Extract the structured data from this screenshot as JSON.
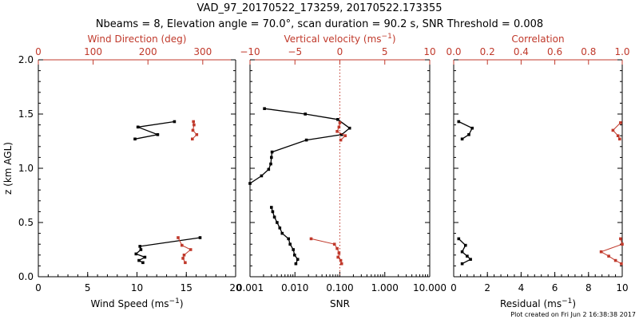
{
  "title_line1": "VAD_97_20170522_173259, 20170522.173355",
  "title_line2": "Nbeams = 8, Elevation angle = 70.0°, scan duration = 90.2 s, SNR Threshold = 0.008",
  "footer": "Plot created on Fri Jun  2 16:38:38 2017",
  "colors": {
    "black": "#000000",
    "red": "#c0392b"
  },
  "chart_data": [
    {
      "type": "line",
      "panel": "wind",
      "ylabel": "z (km AGL)",
      "ylim": [
        0,
        2
      ],
      "yticks": [
        "0.0",
        "0.5",
        "1.0",
        "1.5",
        "2.0"
      ],
      "bottom_axis": {
        "label": "Wind Speed (ms",
        "label_sup": "−1",
        "label_end": ")",
        "range": [
          0,
          20
        ],
        "ticks": [
          "0",
          "5",
          "10",
          "15",
          "20"
        ]
      },
      "top_axis": {
        "label": "Wind Direction (deg)",
        "range": [
          0,
          360
        ],
        "ticks": [
          "0",
          "100",
          "200",
          "300"
        ],
        "tick_values": [
          0,
          100,
          200,
          300
        ]
      },
      "series": [
        {
          "axis": "bottom",
          "color": "#000000",
          "points": [
            [
              10.6,
              0.13
            ],
            [
              10.2,
              0.15
            ],
            [
              10.8,
              0.18
            ],
            [
              9.9,
              0.21
            ],
            [
              10.4,
              0.25
            ],
            [
              10.3,
              0.28
            ],
            [
              16.4,
              0.36
            ]
          ]
        },
        {
          "axis": "bottom",
          "color": "#000000",
          "points": [
            [
              9.8,
              1.27
            ],
            [
              12.1,
              1.31
            ],
            [
              10.1,
              1.38
            ],
            [
              13.8,
              1.43
            ]
          ]
        },
        {
          "axis": "top",
          "color": "#c0392b",
          "points": [
            [
              268,
              0.13
            ],
            [
              264,
              0.17
            ],
            [
              266,
              0.2
            ],
            [
              278,
              0.25
            ],
            [
              262,
              0.29
            ],
            [
              255,
              0.36
            ]
          ]
        },
        {
          "axis": "top",
          "color": "#c0392b",
          "points": [
            [
              281,
              1.27
            ],
            [
              289,
              1.31
            ],
            [
              282,
              1.35
            ],
            [
              284,
              1.4
            ],
            [
              283,
              1.43
            ]
          ]
        }
      ]
    },
    {
      "type": "line",
      "panel": "snr",
      "bottom_axis": {
        "label": "SNR",
        "scale": "log",
        "range": [
          0.001,
          10
        ],
        "ticks": [
          "0.001",
          "0.010",
          "0.100",
          "1.000",
          "10.000"
        ]
      },
      "top_axis": {
        "label": "Vertical velocity (ms",
        "label_sup": "−1",
        "label_end": ")",
        "range": [
          -10,
          10
        ],
        "ticks": [
          "−10",
          "−5",
          "0",
          "5",
          "10"
        ],
        "tick_values": [
          -10,
          -5,
          0,
          5,
          10
        ]
      },
      "reference_line": {
        "axis": "top",
        "value": 0,
        "style": "dotted",
        "color": "#c0392b"
      },
      "series": [
        {
          "axis": "bottom",
          "color": "#000000",
          "points": [
            [
              0.0105,
              0.12
            ],
            [
              0.0115,
              0.16
            ],
            [
              0.0098,
              0.2
            ],
            [
              0.0092,
              0.25
            ],
            [
              0.0078,
              0.3
            ],
            [
              0.0072,
              0.35
            ],
            [
              0.0052,
              0.4
            ],
            [
              0.0046,
              0.45
            ],
            [
              0.004,
              0.5
            ],
            [
              0.0035,
              0.55
            ],
            [
              0.0032,
              0.6
            ],
            [
              0.003,
              0.64
            ]
          ]
        },
        {
          "axis": "bottom",
          "color": "#000000",
          "points": [
            [
              0.001,
              0.86
            ],
            [
              0.0018,
              0.93
            ],
            [
              0.0026,
              0.99
            ],
            [
              0.0029,
              1.04
            ],
            [
              0.003,
              1.1
            ],
            [
              0.0031,
              1.15
            ],
            [
              0.018,
              1.26
            ],
            [
              0.11,
              1.31
            ],
            [
              0.165,
              1.37
            ],
            [
              0.09,
              1.45
            ],
            [
              0.017,
              1.5
            ],
            [
              0.0021,
              1.55
            ]
          ]
        },
        {
          "axis": "top",
          "color": "#c0392b",
          "points": [
            [
              0.2,
              0.12
            ],
            [
              0.1,
              0.15
            ],
            [
              -0.2,
              0.18
            ],
            [
              -0.1,
              0.22
            ],
            [
              -0.3,
              0.26
            ],
            [
              -0.6,
              0.3
            ],
            [
              -3.2,
              0.35
            ]
          ]
        },
        {
          "axis": "top",
          "color": "#c0392b",
          "points": [
            [
              0.1,
              1.26
            ],
            [
              0.6,
              1.3
            ],
            [
              -0.3,
              1.34
            ],
            [
              -0.1,
              1.38
            ],
            [
              0.0,
              1.42
            ]
          ]
        }
      ]
    },
    {
      "type": "line",
      "panel": "residual",
      "bottom_axis": {
        "label": "Residual (ms",
        "label_sup": "−1",
        "label_end": ")",
        "range": [
          0,
          10
        ],
        "ticks": [
          "0",
          "2",
          "4",
          "6",
          "8",
          "10"
        ]
      },
      "top_axis": {
        "label": "Correlation",
        "range": [
          0,
          1
        ],
        "ticks": [
          "0.0",
          "0.2",
          "0.4",
          "0.6",
          "0.8",
          "1.0"
        ],
        "tick_values": [
          0,
          0.2,
          0.4,
          0.6,
          0.8,
          1.0
        ]
      },
      "series": [
        {
          "axis": "bottom",
          "color": "#000000",
          "points": [
            [
              0.5,
              0.12
            ],
            [
              1.0,
              0.16
            ],
            [
              0.8,
              0.19
            ],
            [
              0.5,
              0.23
            ],
            [
              0.7,
              0.29
            ],
            [
              0.3,
              0.35
            ]
          ]
        },
        {
          "axis": "bottom",
          "color": "#000000",
          "points": [
            [
              0.5,
              1.27
            ],
            [
              0.9,
              1.31
            ],
            [
              1.1,
              1.37
            ],
            [
              0.3,
              1.43
            ]
          ]
        },
        {
          "axis": "top",
          "color": "#c0392b",
          "points": [
            [
              0.995,
              0.12
            ],
            [
              0.96,
              0.15
            ],
            [
              0.92,
              0.19
            ],
            [
              0.875,
              0.23
            ],
            [
              1.0,
              0.3
            ],
            [
              0.99,
              0.35
            ]
          ]
        },
        {
          "axis": "top",
          "color": "#c0392b",
          "points": [
            [
              0.985,
              1.27
            ],
            [
              0.975,
              1.3
            ],
            [
              0.945,
              1.35
            ],
            [
              0.99,
              1.42
            ]
          ]
        }
      ]
    }
  ]
}
